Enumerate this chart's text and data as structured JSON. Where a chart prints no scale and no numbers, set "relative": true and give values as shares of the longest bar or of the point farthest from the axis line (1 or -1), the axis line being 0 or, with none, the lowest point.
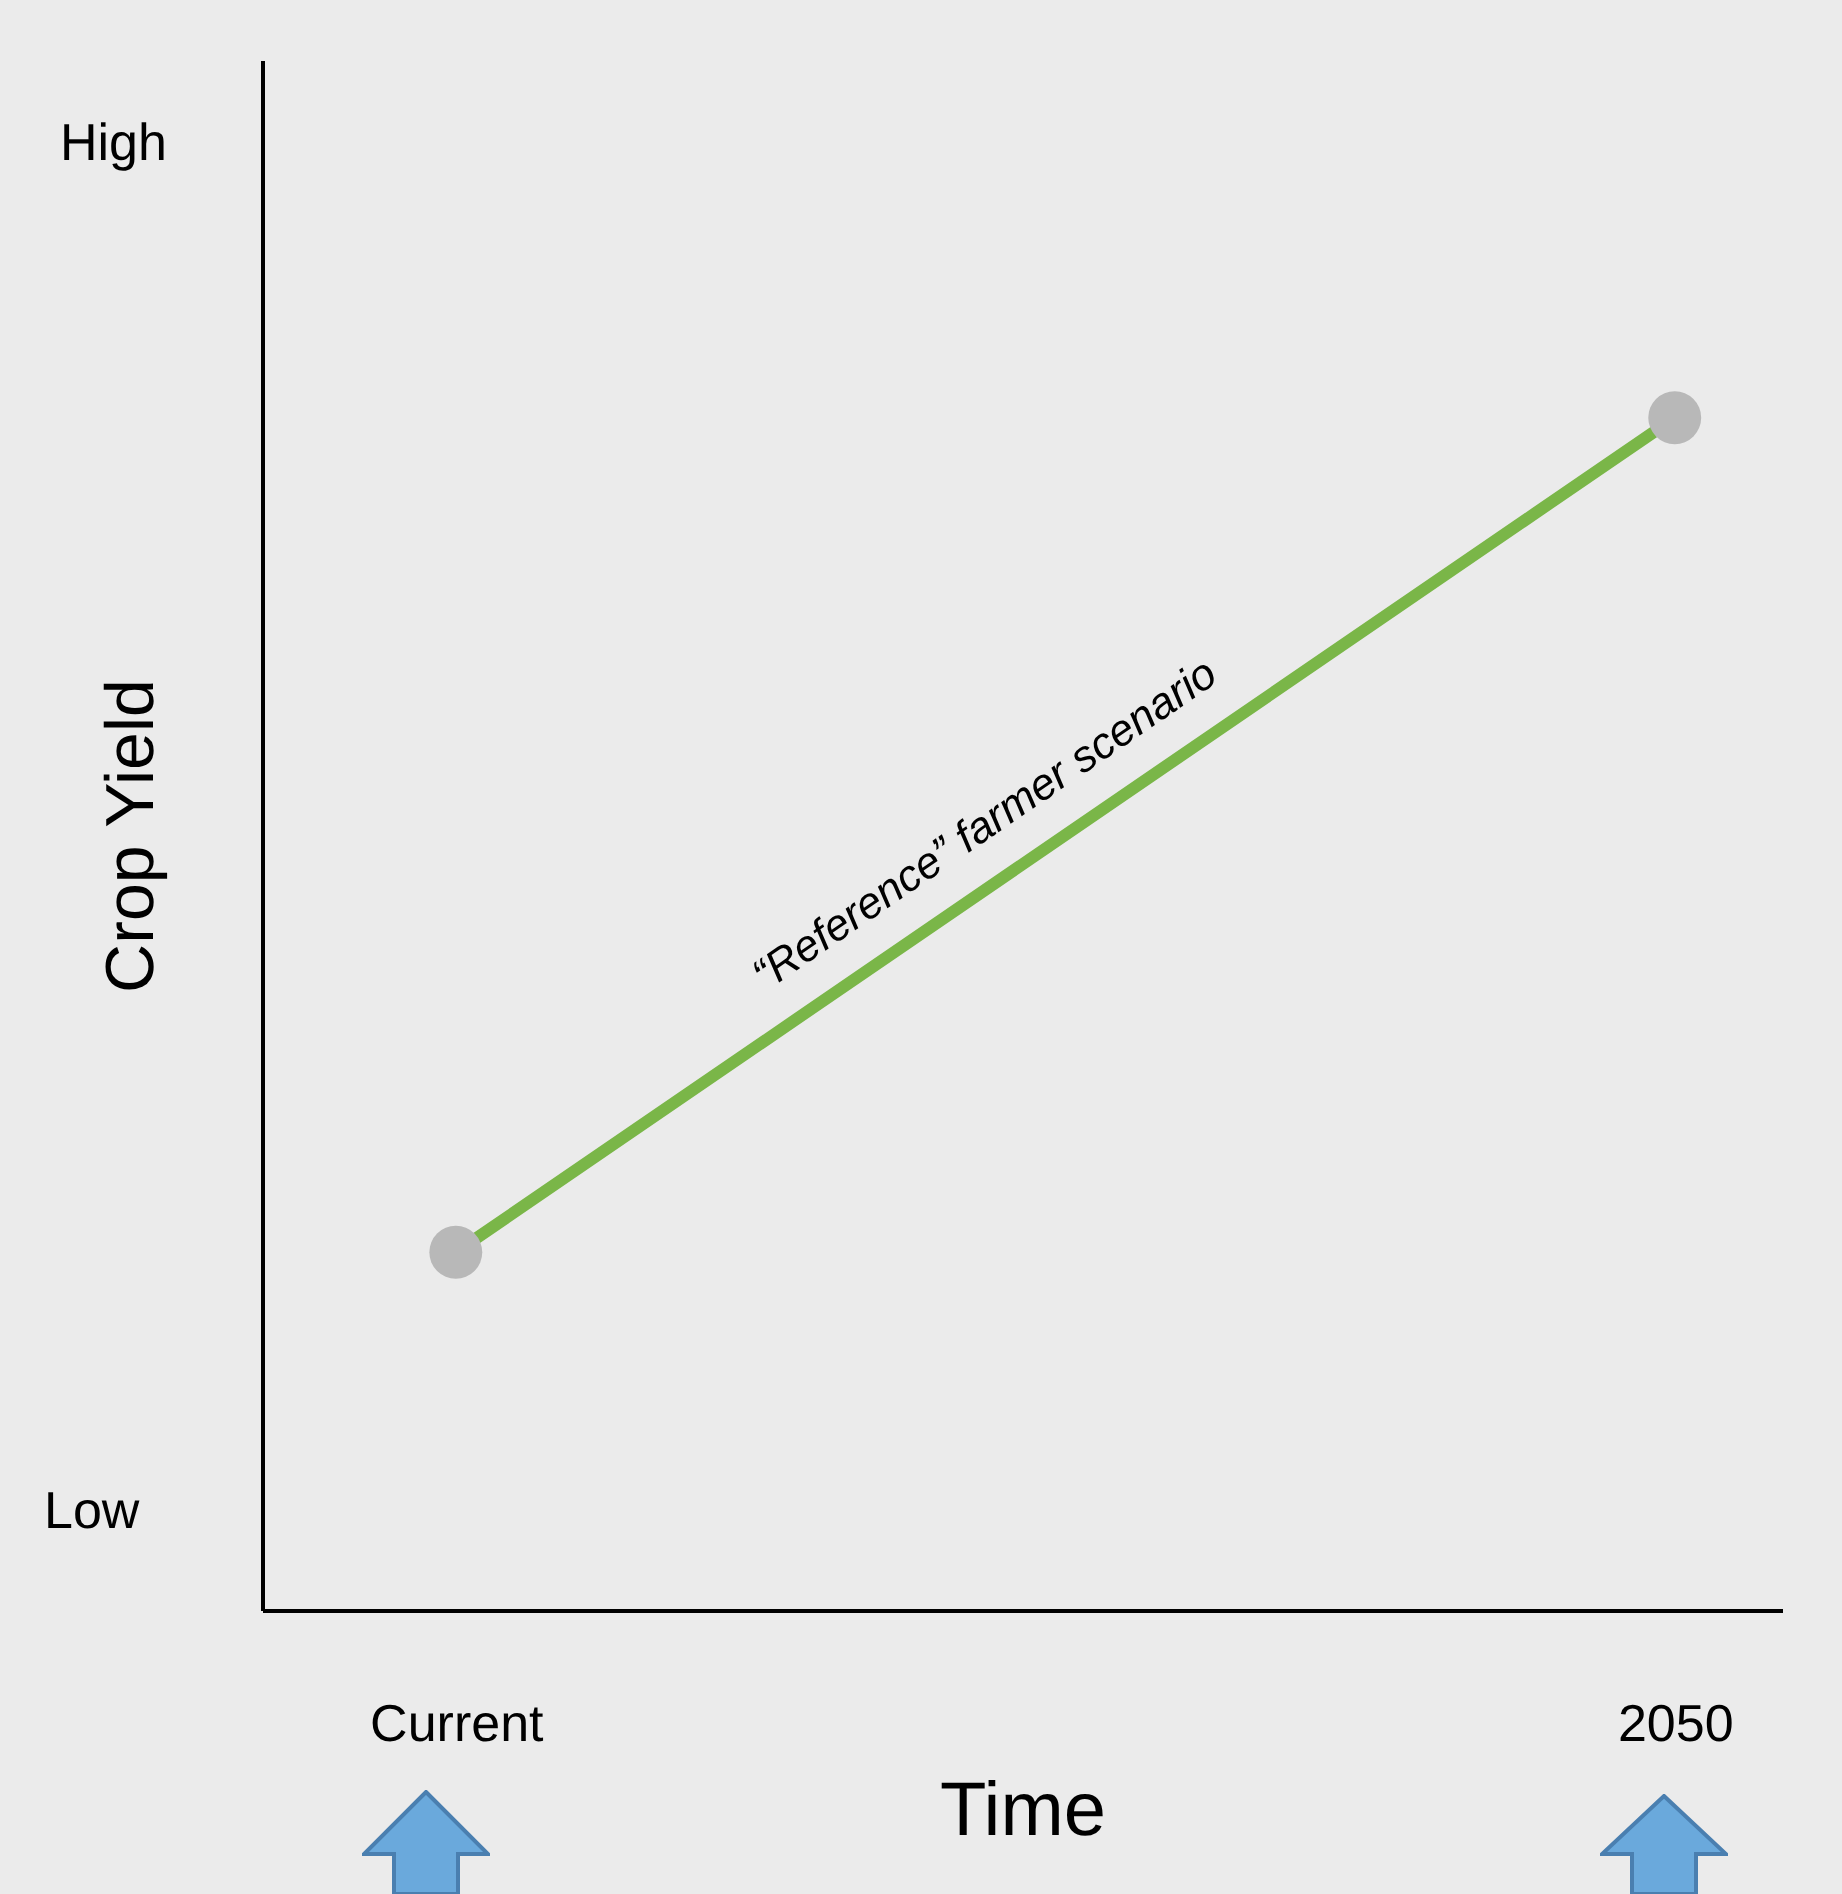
{
  "chart_data": {
    "type": "line",
    "xlabel": "Time",
    "ylabel": "Crop Yield",
    "categories": [
      "Current",
      "2050"
    ],
    "relative": true,
    "marker": "circle",
    "series": [
      {
        "color": "#7ab648",
        "values": [
          0.3,
          1
        ]
      }
    ],
    "annotations": [
      "High",
      "Low",
      "“Reference” farmer scenario"
    ]
  }
}
